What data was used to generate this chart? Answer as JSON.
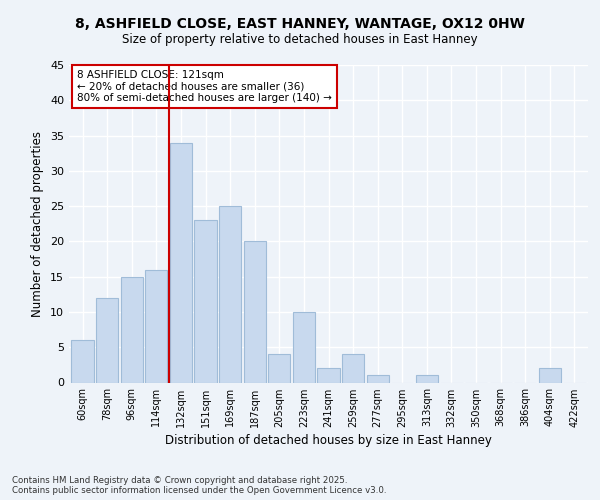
{
  "title1": "8, ASHFIELD CLOSE, EAST HANNEY, WANTAGE, OX12 0HW",
  "title2": "Size of property relative to detached houses in East Hanney",
  "xlabel": "Distribution of detached houses by size in East Hanney",
  "ylabel": "Number of detached properties",
  "bar_color": "#c8d9ee",
  "bar_edge_color": "#a0bcd8",
  "categories": [
    "60sqm",
    "78sqm",
    "96sqm",
    "114sqm",
    "132sqm",
    "151sqm",
    "169sqm",
    "187sqm",
    "205sqm",
    "223sqm",
    "241sqm",
    "259sqm",
    "277sqm",
    "295sqm",
    "313sqm",
    "332sqm",
    "350sqm",
    "368sqm",
    "386sqm",
    "404sqm",
    "422sqm"
  ],
  "values": [
    6,
    12,
    15,
    16,
    34,
    23,
    25,
    20,
    4,
    10,
    2,
    4,
    1,
    0,
    1,
    0,
    0,
    0,
    0,
    2,
    0
  ],
  "ylim": [
    0,
    45
  ],
  "yticks": [
    0,
    5,
    10,
    15,
    20,
    25,
    30,
    35,
    40,
    45
  ],
  "vline_x": 3.5,
  "vline_color": "#cc0000",
  "annotation_text": "8 ASHFIELD CLOSE: 121sqm\n← 20% of detached houses are smaller (36)\n80% of semi-detached houses are larger (140) →",
  "annotation_box_color": "#ffffff",
  "annotation_box_edge": "#cc0000",
  "footer_text": "Contains HM Land Registry data © Crown copyright and database right 2025.\nContains public sector information licensed under the Open Government Licence v3.0.",
  "bg_color": "#eef3f9",
  "grid_color": "#ffffff"
}
